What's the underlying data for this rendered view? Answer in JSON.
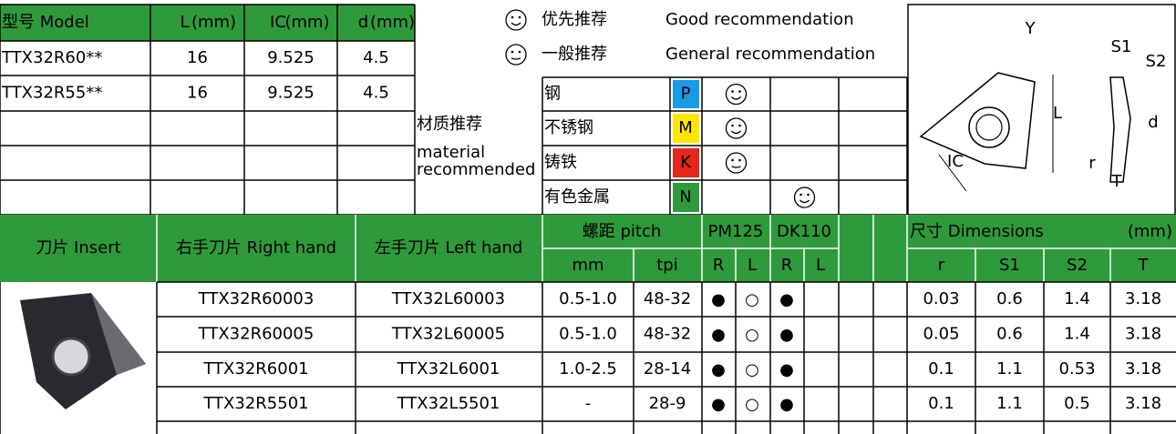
{
  "spec_table": {
    "headers": [
      {
        "label": "型号 Model"
      },
      {
        "label": "L",
        "unit": "(mm)"
      },
      {
        "label": "IC",
        "unit": "(mm)"
      },
      {
        "label": "d",
        "unit": "(mm)"
      }
    ],
    "rows": [
      [
        "TTX32R60**",
        "16",
        "9.525",
        "4.5"
      ],
      [
        "TTX32R55**",
        "16",
        "9.525",
        "4.5"
      ]
    ]
  },
  "legend": [
    {
      "icon": "good",
      "label_cn": "优先推荐",
      "label_en": "Good recommendation"
    },
    {
      "icon": "general",
      "label_cn": "一般推荐",
      "label_en": "General recommendation"
    }
  ],
  "materials": {
    "title": "材质推荐",
    "subtitle": "material recommended",
    "items": [
      {
        "name": "钢",
        "code": "P",
        "color": "#1a9be6",
        "column": 0,
        "icon": "good"
      },
      {
        "name": "不锈钢",
        "code": "M",
        "color": "#ffe600",
        "column": 0,
        "icon": "good"
      },
      {
        "name": "铸铁",
        "code": "K",
        "color": "#e5261c",
        "column": 0,
        "icon": "general"
      },
      {
        "name": "有色金属",
        "code": "N",
        "color": "#2f9a3c",
        "column": 1,
        "icon": "good"
      }
    ]
  },
  "diagram": {
    "labels": [
      "Y",
      "S1",
      "S2",
      "L",
      "d",
      "IC",
      "r",
      "T"
    ]
  },
  "inserts": {
    "headers": {
      "insert": "刀片 Insert",
      "right": "右手刀片 Right hand",
      "left": "左手刀片 Left hand",
      "pitch": "螺距 pitch",
      "mm": "mm",
      "tpi": "tpi",
      "grades": [
        "PM125",
        "DK110"
      ],
      "hands": [
        "R",
        "L"
      ],
      "dimensions": "尺寸 Dimensions",
      "dim_unit": "(mm)",
      "dims": [
        "r",
        "S1",
        "S2",
        "T"
      ]
    },
    "rows": [
      {
        "right": "TTX32R60003",
        "left": "TTX32L60003",
        "mm": "0.5-1.0",
        "tpi": "48-32",
        "grades": [
          [
            "●",
            "○"
          ],
          [
            "●"
          ]
        ],
        "dims": [
          "0.03",
          "0.6",
          "1.4",
          "3.18"
        ]
      },
      {
        "right": "TTX32R60005",
        "left": "TTX32L60005",
        "mm": "0.5-1.0",
        "tpi": "48-32",
        "grades": [
          [
            "●",
            "○"
          ],
          [
            "●"
          ]
        ],
        "dims": [
          "0.05",
          "0.6",
          "1.4",
          "3.18"
        ]
      },
      {
        "right": "TTX32R6001",
        "left": "TTX32L6001",
        "mm": "1.0-2.5",
        "tpi": "28-14",
        "grades": [
          [
            "●",
            "○"
          ],
          [
            "●"
          ]
        ],
        "dims": [
          "0.1",
          "1.1",
          "0.53",
          "3.18"
        ]
      },
      {
        "right": "TTX32R5501",
        "left": "TTX32L5501",
        "mm": "-",
        "tpi": "28-9",
        "grades": [
          [
            "●",
            "○"
          ],
          [
            "●"
          ]
        ],
        "dims": [
          "0.1",
          "1.1",
          "0.5",
          "3.18"
        ]
      }
    ]
  }
}
